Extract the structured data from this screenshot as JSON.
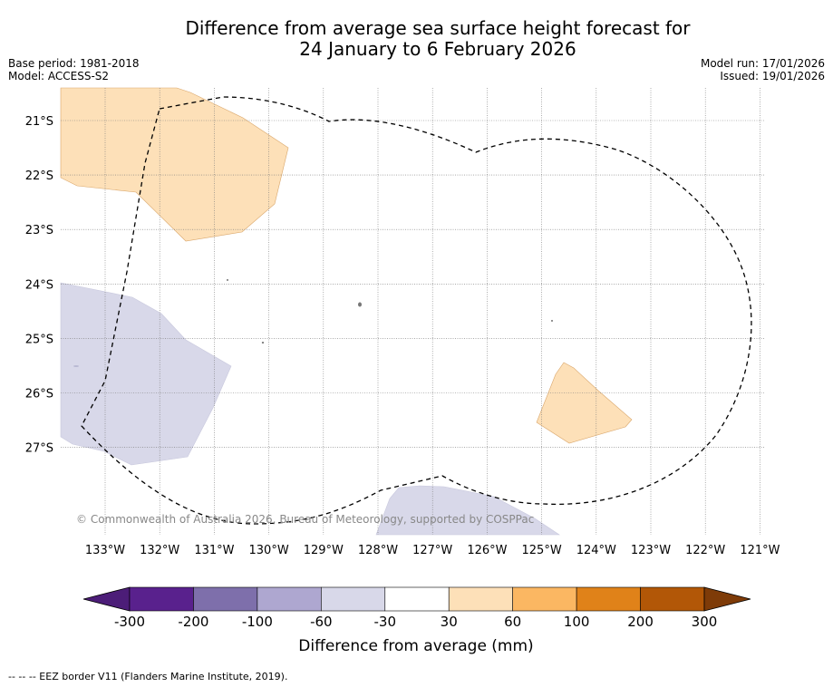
{
  "title": {
    "line1": "Difference from average sea surface height forecast for",
    "line2": "24 January to 6 February 2026"
  },
  "meta": {
    "base_period": "Base period: 1981-2018",
    "model": "Model: ACCESS-S2",
    "model_run": "Model run: 17/01/2026",
    "issued": "Issued: 19/01/2026"
  },
  "map": {
    "lon_labels": [
      "133°W",
      "132°W",
      "131°W",
      "130°W",
      "129°W",
      "128°W",
      "127°W",
      "126°W",
      "125°W",
      "124°W",
      "123°W",
      "122°W",
      "121°W"
    ],
    "lat_labels": [
      "21°S",
      "22°S",
      "23°S",
      "24°S",
      "25°S",
      "26°S",
      "27°S"
    ],
    "copyright": "© Commonwealth of Australia 2026, Bureau of Meteorology, supported by COSPPac",
    "regions": [
      {
        "name": "positive-anomaly-northwest",
        "category": "30 to 60 mm",
        "color": "#fde0b8"
      },
      {
        "name": "negative-anomaly-west",
        "category": "-60 to -30 mm",
        "color": "#d8d8e9"
      },
      {
        "name": "positive-anomaly-east",
        "category": "30 to 60 mm",
        "color": "#fde0b8"
      },
      {
        "name": "negative-anomaly-south",
        "category": "-60 to -30 mm",
        "color": "#d8d8e9"
      }
    ]
  },
  "colorbar": {
    "bins": [
      {
        "color": "#4c1d78"
      },
      {
        "color": "#59218d"
      },
      {
        "color": "#7e6fab"
      },
      {
        "color": "#aea7d0"
      },
      {
        "color": "#d8d8e9"
      },
      {
        "color": "#ffffff"
      },
      {
        "color": "#fde0b8"
      },
      {
        "color": "#fbb762"
      },
      {
        "color": "#e08219"
      },
      {
        "color": "#b25707"
      },
      {
        "color": "#7e3b08"
      }
    ],
    "tick_labels": [
      "-300",
      "-200",
      "-100",
      "-60",
      "-30",
      "30",
      "60",
      "100",
      "200",
      "300"
    ],
    "label": "Difference from average (mm)"
  },
  "footnote": "--  --  -- EEZ border V11 (Flanders Marine Institute, 2019)."
}
